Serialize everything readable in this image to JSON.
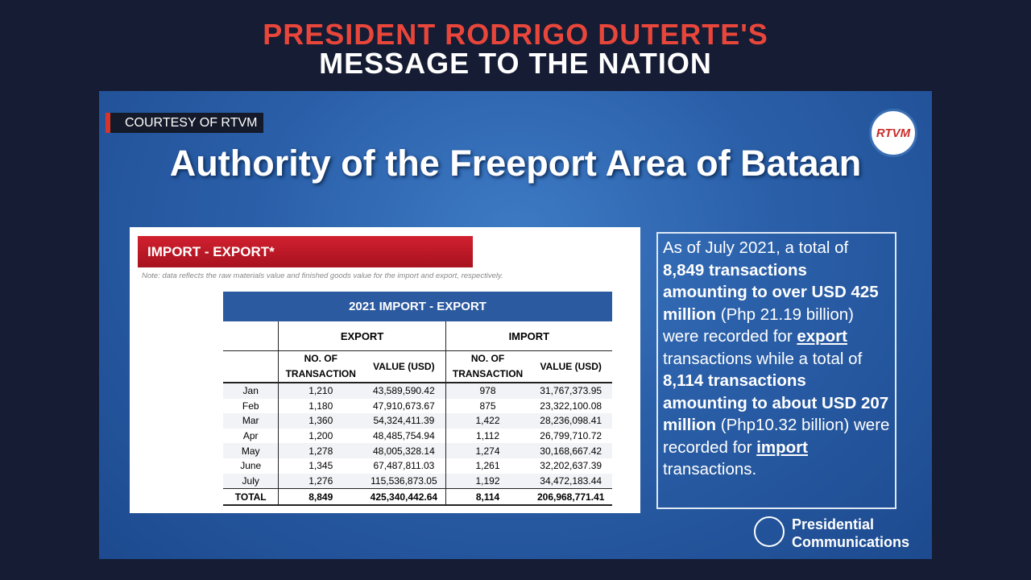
{
  "header": {
    "line1": "PRESIDENT RODRIGO DUTERTE'S",
    "line2": "MESSAGE TO THE NATION"
  },
  "courtesy": "COURTESY OF RTVM",
  "logo": "RTVM",
  "slide_title": "Authority of the Freeport Area of Bataan",
  "panel": {
    "tab": "IMPORT - EXPORT*",
    "note": "Note: data reflects the raw materials value and finished goods value for the import and export, respectively.",
    "table": {
      "title": "2021 IMPORT - EXPORT",
      "groups": [
        "EXPORT",
        "IMPORT"
      ],
      "subheaders": [
        "NO. OF TRANSACTION",
        "VALUE (USD)",
        "NO. OF TRANSACTION",
        "VALUE (USD)"
      ],
      "rows": [
        [
          "Jan",
          "1,210",
          "43,589,590.42",
          "978",
          "31,767,373.95"
        ],
        [
          "Feb",
          "1,180",
          "47,910,673.67",
          "875",
          "23,322,100.08"
        ],
        [
          "Mar",
          "1,360",
          "54,324,411.39",
          "1,422",
          "28,236,098.41"
        ],
        [
          "Apr",
          "1,200",
          "48,485,754.94",
          "1,112",
          "26,799,710.72"
        ],
        [
          "May",
          "1,278",
          "48,005,328.14",
          "1,274",
          "30,168,667.42"
        ],
        [
          "June",
          "1,345",
          "67,487,811.03",
          "1,261",
          "32,202,637.39"
        ],
        [
          "July",
          "1,276",
          "115,536,873.05",
          "1,192",
          "34,472,183.44"
        ]
      ],
      "total": [
        "TOTAL",
        "8,849",
        "425,340,442.64",
        "8,114",
        "206,968,771.41"
      ]
    }
  },
  "summary": [
    "As of July 2021, a total of ",
    "8,849 transactions amounting to over USD 425 million",
    " (Php 21.19 billion) were recorded for ",
    "export",
    " transactions while  a total of ",
    "8,114 transactions amounting to about USD 207 million",
    " (Php10.32 billion) were recorded for ",
    "import",
    " transactions."
  ],
  "footer": {
    "line1": "Presidential",
    "line2": "Communications"
  }
}
